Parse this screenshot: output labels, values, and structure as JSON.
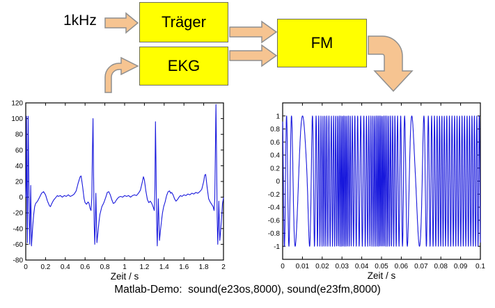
{
  "diagram": {
    "input_label": "1kHz",
    "boxes": {
      "traeger": {
        "label": "Träger"
      },
      "ekg": {
        "label": "EKG"
      },
      "fm": {
        "label": "FM"
      }
    },
    "colors": {
      "box_fill": "#FFFF00",
      "box_border": "#6e6e5e",
      "arrow_fill": "#F6C491",
      "arrow_stroke": "#8f8f8f",
      "line_blue": "#1818DC"
    }
  },
  "chart_data": [
    {
      "name": "ekg-plot",
      "type": "line",
      "title": "",
      "xlabel": "Zeit / s",
      "ylabel": "",
      "xlim": [
        0,
        2
      ],
      "ylim": [
        -80,
        120
      ],
      "grid": false,
      "legend": null,
      "line_color": "#1818DC",
      "xticks": {
        "values": [
          0,
          0.2,
          0.4,
          0.6,
          0.8,
          1,
          1.2,
          1.4,
          1.6,
          1.8,
          2
        ],
        "labels": [
          "0",
          "0.2",
          "0.4",
          "0.6",
          "0.8",
          "1",
          "1.2",
          "1.4",
          "1.6",
          "1.8",
          "2"
        ]
      },
      "yticks": {
        "values": [
          -80,
          -60,
          -40,
          -20,
          0,
          20,
          40,
          60,
          80,
          100,
          120
        ],
        "labels": [
          "-80",
          "-60",
          "-40",
          "-20",
          "0",
          "20",
          "40",
          "60",
          "80",
          "100",
          "120"
        ]
      },
      "series": [
        {
          "name": "EKG",
          "points": [
            [
              0,
              0
            ],
            [
              0.004,
              20
            ],
            [
              0.008,
              103
            ],
            [
              0.013,
              -20
            ],
            [
              0.016,
              -58
            ],
            [
              0.02,
              10
            ],
            [
              0.025,
              103
            ],
            [
              0.03,
              30
            ],
            [
              0.035,
              -30
            ],
            [
              0.04,
              -60
            ],
            [
              0.045,
              -25
            ],
            [
              0.05,
              15
            ],
            [
              0.054,
              -25
            ],
            [
              0.058,
              -62
            ],
            [
              0.065,
              -48
            ],
            [
              0.072,
              -35
            ],
            [
              0.08,
              -22
            ],
            [
              0.09,
              -12
            ],
            [
              0.1,
              -8
            ],
            [
              0.12,
              -5
            ],
            [
              0.14,
              0
            ],
            [
              0.16,
              5
            ],
            [
              0.18,
              7
            ],
            [
              0.2,
              3
            ],
            [
              0.22,
              -5
            ],
            [
              0.24,
              -11
            ],
            [
              0.25,
              -12
            ],
            [
              0.26,
              -9
            ],
            [
              0.28,
              -4
            ],
            [
              0.3,
              -1
            ],
            [
              0.32,
              2
            ],
            [
              0.33,
              1
            ],
            [
              0.35,
              2
            ],
            [
              0.37,
              0
            ],
            [
              0.39,
              2
            ],
            [
              0.41,
              1
            ],
            [
              0.43,
              3
            ],
            [
              0.45,
              1
            ],
            [
              0.47,
              2
            ],
            [
              0.49,
              4
            ],
            [
              0.51,
              8
            ],
            [
              0.53,
              18
            ],
            [
              0.55,
              26
            ],
            [
              0.56,
              27
            ],
            [
              0.575,
              14
            ],
            [
              0.59,
              -2
            ],
            [
              0.6,
              -7
            ],
            [
              0.615,
              -9
            ],
            [
              0.63,
              -6
            ],
            [
              0.64,
              -8
            ],
            [
              0.65,
              -14
            ],
            [
              0.66,
              -17
            ],
            [
              0.668,
              0
            ],
            [
              0.674,
              55
            ],
            [
              0.68,
              100
            ],
            [
              0.686,
              30
            ],
            [
              0.692,
              -35
            ],
            [
              0.698,
              -60
            ],
            [
              0.704,
              -28
            ],
            [
              0.709,
              5
            ],
            [
              0.714,
              -25
            ],
            [
              0.72,
              -58
            ],
            [
              0.73,
              -45
            ],
            [
              0.74,
              -32
            ],
            [
              0.75,
              -22
            ],
            [
              0.77,
              -12
            ],
            [
              0.79,
              -7
            ],
            [
              0.81,
              0
            ],
            [
              0.825,
              6
            ],
            [
              0.84,
              7
            ],
            [
              0.855,
              3
            ],
            [
              0.87,
              -3
            ],
            [
              0.885,
              -8
            ],
            [
              0.9,
              -7
            ],
            [
              0.92,
              -3
            ],
            [
              0.94,
              0
            ],
            [
              0.96,
              1
            ],
            [
              0.98,
              0
            ],
            [
              1.0,
              2
            ],
            [
              1.02,
              1
            ],
            [
              1.04,
              2
            ],
            [
              1.06,
              0
            ],
            [
              1.08,
              2
            ],
            [
              1.1,
              3
            ],
            [
              1.12,
              2
            ],
            [
              1.14,
              5
            ],
            [
              1.16,
              9
            ],
            [
              1.18,
              20
            ],
            [
              1.19,
              26
            ],
            [
              1.2,
              22
            ],
            [
              1.215,
              8
            ],
            [
              1.23,
              -3
            ],
            [
              1.245,
              -7
            ],
            [
              1.26,
              -5
            ],
            [
              1.275,
              -8
            ],
            [
              1.29,
              -13
            ],
            [
              1.3,
              -17
            ],
            [
              1.306,
              10
            ],
            [
              1.312,
              96
            ],
            [
              1.318,
              35
            ],
            [
              1.324,
              -30
            ],
            [
              1.33,
              -62
            ],
            [
              1.336,
              -30
            ],
            [
              1.341,
              -2
            ],
            [
              1.347,
              -30
            ],
            [
              1.353,
              -55
            ],
            [
              1.363,
              -42
            ],
            [
              1.373,
              -30
            ],
            [
              1.383,
              -20
            ],
            [
              1.395,
              -12
            ],
            [
              1.41,
              -6
            ],
            [
              1.425,
              2
            ],
            [
              1.44,
              7
            ],
            [
              1.455,
              8
            ],
            [
              1.465,
              5
            ],
            [
              1.475,
              6
            ],
            [
              1.49,
              3
            ],
            [
              1.505,
              -2
            ],
            [
              1.52,
              -5
            ],
            [
              1.535,
              -3
            ],
            [
              1.55,
              0
            ],
            [
              1.565,
              2
            ],
            [
              1.58,
              1
            ],
            [
              1.6,
              3
            ],
            [
              1.62,
              2
            ],
            [
              1.64,
              4
            ],
            [
              1.66,
              3
            ],
            [
              1.68,
              5
            ],
            [
              1.7,
              4
            ],
            [
              1.72,
              6
            ],
            [
              1.74,
              5
            ],
            [
              1.76,
              7
            ],
            [
              1.78,
              10
            ],
            [
              1.8,
              20
            ],
            [
              1.81,
              28
            ],
            [
              1.82,
              29
            ],
            [
              1.835,
              12
            ],
            [
              1.85,
              -2
            ],
            [
              1.865,
              -6
            ],
            [
              1.88,
              -9
            ],
            [
              1.895,
              -12
            ],
            [
              1.905,
              -17
            ],
            [
              1.912,
              -2
            ],
            [
              1.918,
              60
            ],
            [
              1.924,
              118
            ],
            [
              1.93,
              50
            ],
            [
              1.936,
              -25
            ],
            [
              1.942,
              -60
            ],
            [
              1.948,
              -35
            ],
            [
              1.953,
              -5
            ],
            [
              1.958,
              -30
            ],
            [
              1.963,
              -55
            ],
            [
              1.972,
              -42
            ],
            [
              1.982,
              -25
            ],
            [
              1.99,
              -8
            ],
            [
              2.0,
              -1
            ]
          ]
        }
      ]
    },
    {
      "name": "fm-plot",
      "type": "line",
      "title": "",
      "xlabel": "Zeit / s",
      "ylabel": "",
      "xlim": [
        0,
        0.1
      ],
      "ylim": [
        -1.2,
        1.2
      ],
      "grid": false,
      "legend": null,
      "line_color": "#1818DC",
      "xticks": {
        "values": [
          0,
          0.01,
          0.02,
          0.03,
          0.04,
          0.05,
          0.06,
          0.07,
          0.08,
          0.09,
          0.1
        ],
        "labels": [
          "0",
          "0.01",
          "0.02",
          "0.03",
          "0.04",
          "0.05",
          "0.06",
          "0.07",
          "0.08",
          "0.09",
          "0.1"
        ]
      },
      "yticks": {
        "values": [
          -1,
          -0.8,
          -0.6,
          -0.4,
          -0.2,
          0,
          0.2,
          0.4,
          0.6,
          0.8,
          1
        ],
        "labels": [
          "-1",
          "-0.8",
          "-0.6",
          "-0.4",
          "-0.2",
          "0",
          "0.2",
          "0.4",
          "0.6",
          "0.8",
          "1"
        ]
      },
      "signal": {
        "kind": "fm-sine",
        "description": "1 kHz carrier frequency-modulated by EKG signal",
        "amplitude": 1,
        "start_phase_rad": 2.0,
        "samples": 3200,
        "freq_profile_hz": [
          [
            0,
            500
          ],
          [
            0.004,
            380
          ],
          [
            0.007,
            140
          ],
          [
            0.012,
            95
          ],
          [
            0.015,
            420
          ],
          [
            0.018,
            800
          ],
          [
            0.021,
            1100
          ],
          [
            0.024,
            800
          ],
          [
            0.027,
            1000
          ],
          [
            0.03,
            1400
          ],
          [
            0.033,
            1200
          ],
          [
            0.036,
            750
          ],
          [
            0.04,
            600
          ],
          [
            0.043,
            850
          ],
          [
            0.046,
            1100
          ],
          [
            0.049,
            1400
          ],
          [
            0.052,
            1250
          ],
          [
            0.055,
            950
          ],
          [
            0.058,
            700
          ],
          [
            0.061,
            480
          ],
          [
            0.064,
            220
          ],
          [
            0.067,
            95
          ],
          [
            0.07,
            180
          ],
          [
            0.073,
            500
          ],
          [
            0.076,
            700
          ],
          [
            0.08,
            850
          ],
          [
            0.084,
            750
          ],
          [
            0.088,
            800
          ],
          [
            0.092,
            780
          ],
          [
            0.096,
            820
          ],
          [
            0.1,
            800
          ]
        ]
      }
    }
  ],
  "caption": "Matlab-Demo:  sound(e23os,8000), sound(e23fm,8000)"
}
